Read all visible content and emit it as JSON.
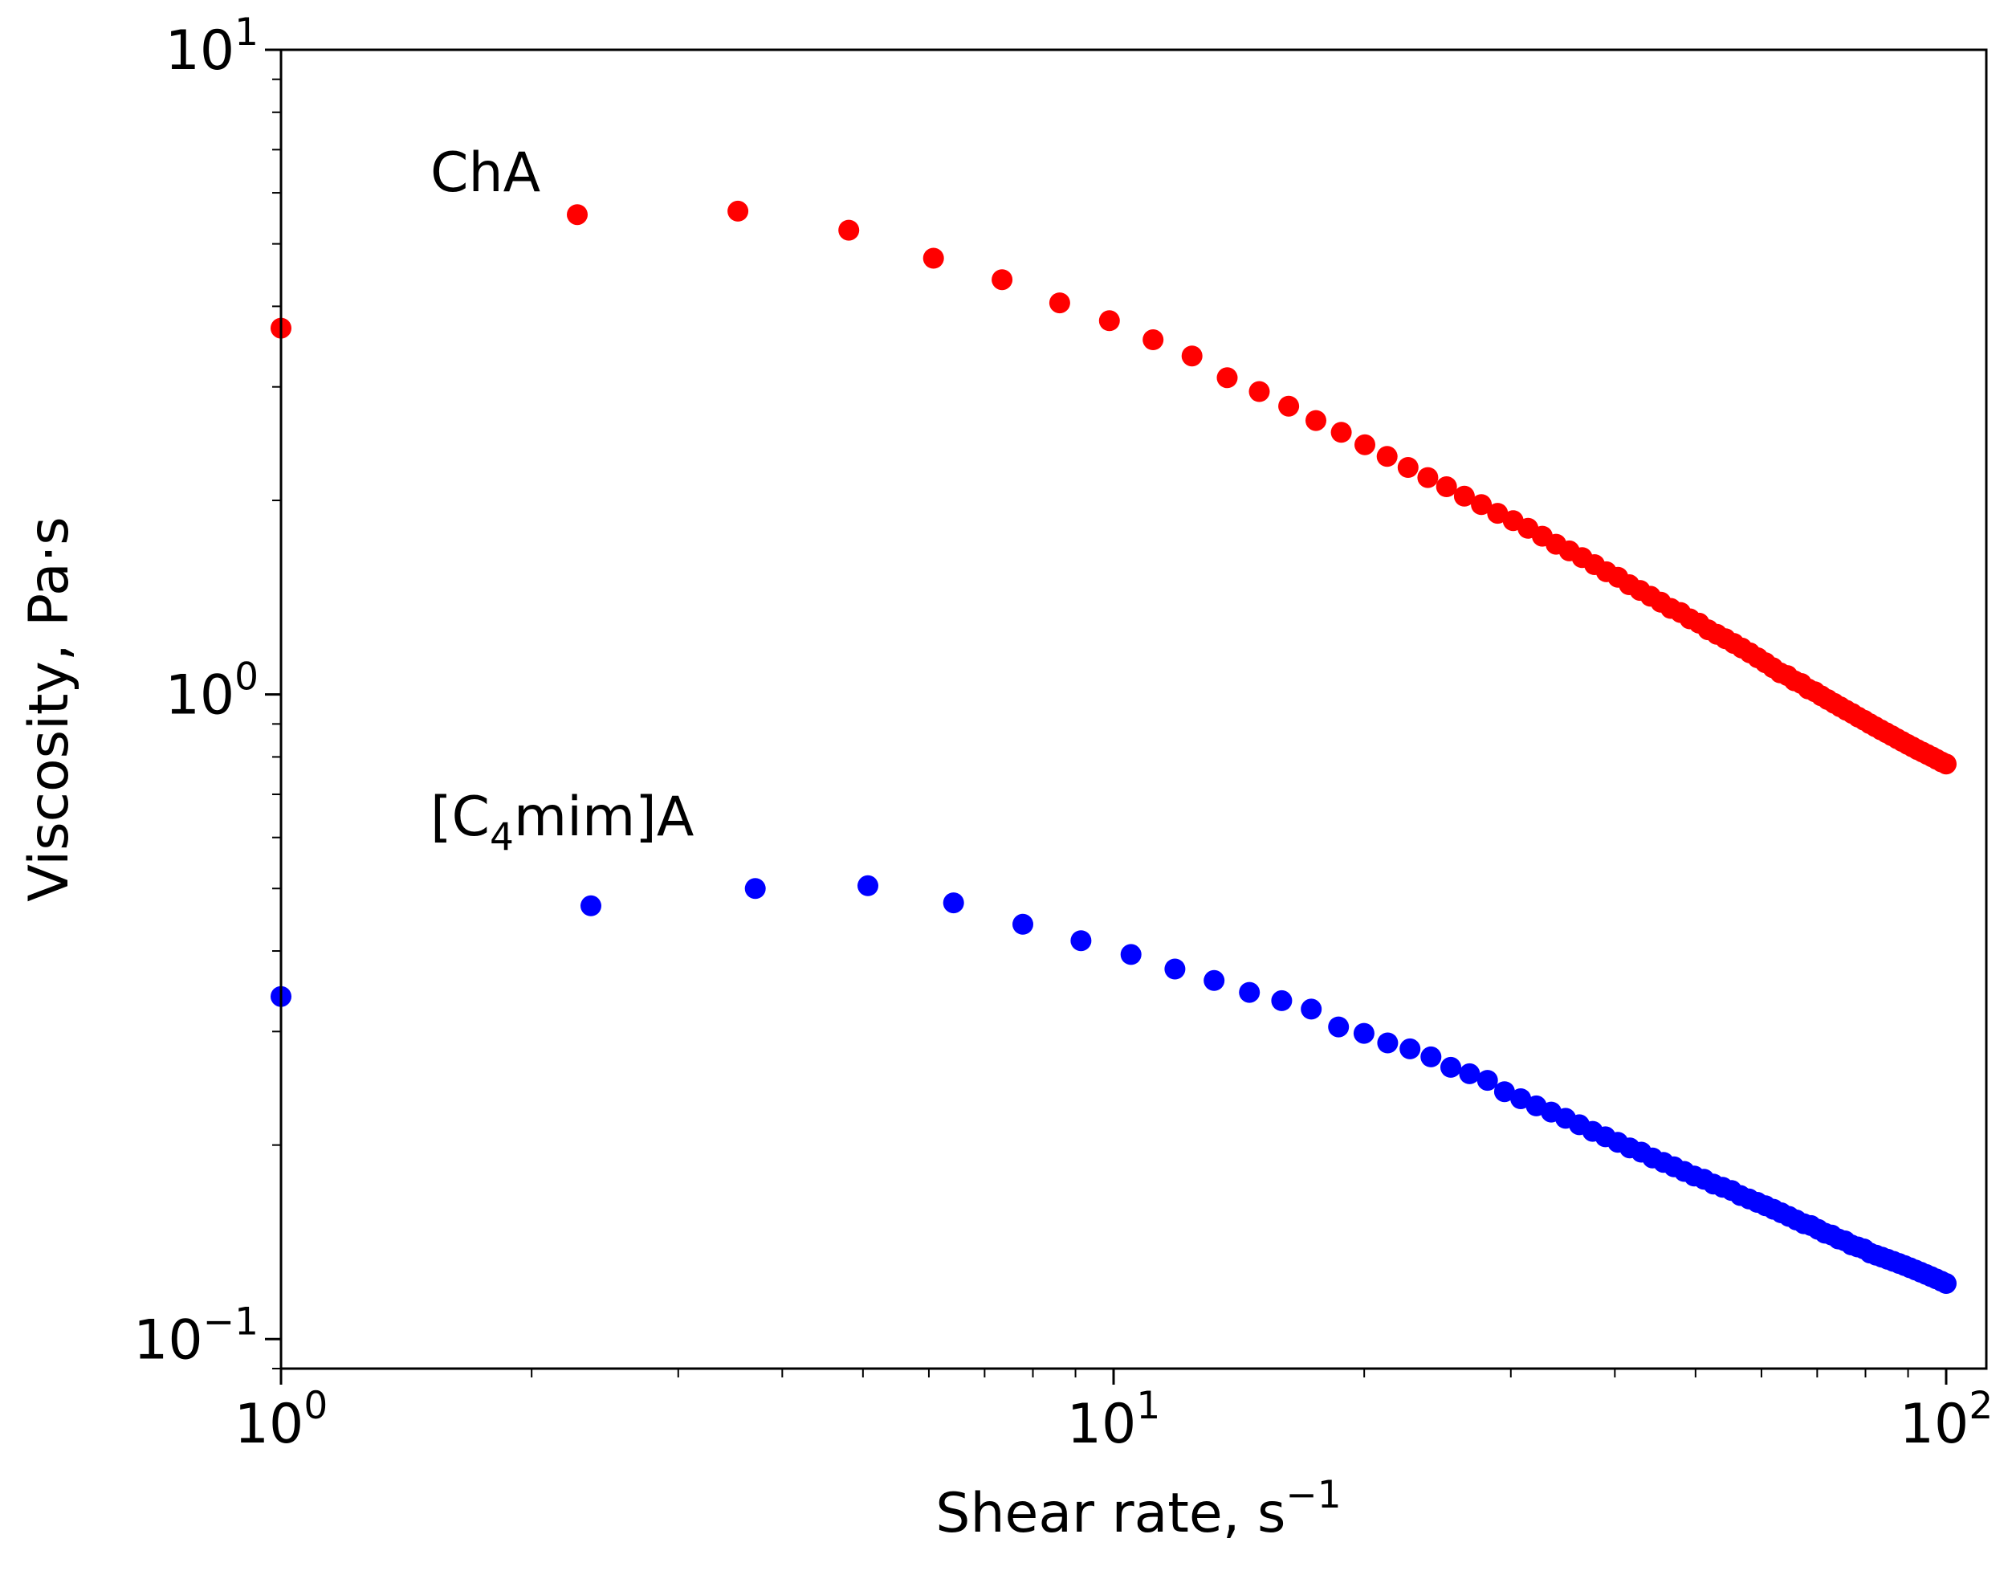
{
  "chart_data": {
    "type": "scatter",
    "xscale": "log",
    "yscale": "log",
    "xlim": [
      1,
      100
    ],
    "ylim": [
      0.09,
      10
    ],
    "xlabel": "Shear rate, s",
    "xlabel_exp": "−1",
    "ylabel": "Viscosity, Pa·s",
    "xticks": [
      {
        "value": 1,
        "base": "10",
        "exp": "0"
      },
      {
        "value": 10,
        "base": "10",
        "exp": "1"
      },
      {
        "value": 100,
        "base": "10",
        "exp": "2"
      }
    ],
    "yticks": [
      {
        "value": 10,
        "base": "10",
        "exp": "1"
      },
      {
        "value": 1,
        "base": "10",
        "exp": "0"
      },
      {
        "value": 0.1,
        "base": "10",
        "exp": "−1"
      }
    ],
    "series": [
      {
        "name": "ChA",
        "color": "#ff0000",
        "x_range": [
          1,
          100
        ],
        "values": [
          3.7,
          5.55,
          5.62,
          5.25,
          4.75,
          4.4,
          4.05,
          3.8,
          3.55,
          3.35,
          3.1,
          2.95,
          2.8,
          2.66,
          2.55,
          2.44,
          2.34,
          2.25,
          2.17,
          2.1,
          2.03,
          1.97,
          1.91,
          1.86,
          1.81,
          1.76,
          1.71,
          1.67,
          1.63,
          1.59,
          1.55,
          1.52,
          1.48,
          1.45,
          1.42,
          1.39,
          1.36,
          1.34,
          1.31,
          1.29,
          1.26,
          1.24,
          1.22,
          1.2,
          1.18,
          1.16,
          1.14,
          1.12,
          1.1,
          1.08,
          1.07,
          1.05,
          1.04,
          1.02,
          1.01,
          0.995,
          0.982,
          0.969,
          0.957,
          0.945,
          0.934,
          0.922,
          0.912,
          0.901,
          0.891,
          0.881,
          0.872,
          0.863,
          0.854,
          0.845,
          0.837,
          0.829,
          0.821,
          0.814,
          0.807,
          0.8,
          0.793,
          0.786,
          0.78
        ]
      },
      {
        "name": "[C4mim]A",
        "name_parts": [
          "[C",
          "4",
          "mim]A"
        ],
        "color": "#0000ff",
        "x_range": [
          1,
          100
        ],
        "values": [
          0.34,
          0.47,
          0.5,
          0.505,
          0.475,
          0.44,
          0.415,
          0.395,
          0.375,
          0.36,
          0.345,
          0.335,
          0.325,
          0.305,
          0.298,
          0.288,
          0.282,
          0.274,
          0.264,
          0.258,
          0.252,
          0.242,
          0.236,
          0.23,
          0.225,
          0.22,
          0.215,
          0.21,
          0.206,
          0.202,
          0.198,
          0.195,
          0.191,
          0.188,
          0.185,
          0.182,
          0.179,
          0.177,
          0.174,
          0.172,
          0.17,
          0.167,
          0.165,
          0.163,
          0.161,
          0.159,
          0.157,
          0.155,
          0.153,
          0.151,
          0.15,
          0.148,
          0.146,
          0.145,
          0.143,
          0.142,
          0.14,
          0.139,
          0.138,
          0.136,
          0.135,
          0.134,
          0.133,
          0.132,
          0.131,
          0.13,
          0.129,
          0.128,
          0.127,
          0.126,
          0.125,
          0.124,
          0.123,
          0.122
        ]
      }
    ],
    "annotations": [
      "ChA",
      "[C4mim]A"
    ]
  }
}
